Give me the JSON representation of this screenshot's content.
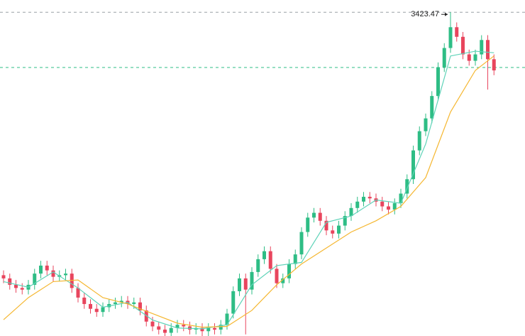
{
  "chart_data": {
    "type": "candlestick",
    "ylim": [
      1400,
      3500
    ],
    "up_color": "#2ebd85",
    "down_color": "#e8455d",
    "max_label": 3423.47,
    "max_line_color": "#9aa0a6",
    "price_line": 3078,
    "price_line_color": "#2ebd85",
    "open": [
      1780,
      1760,
      1720,
      1700,
      1690,
      1720,
      1790,
      1840,
      1810,
      1770,
      1780,
      1790,
      1700,
      1640,
      1600,
      1570,
      1550,
      1580,
      1600,
      1610,
      1620,
      1600,
      1610,
      1560,
      1490,
      1460,
      1440,
      1420,
      1450,
      1470,
      1460,
      1440,
      1450,
      1430,
      1450,
      1440,
      1470,
      1540,
      1680,
      1760,
      1690,
      1800,
      1880,
      1930,
      1820,
      1730,
      1760,
      1850,
      1910,
      2050,
      2140,
      2170,
      2120,
      2060,
      2040,
      2090,
      2150,
      2200,
      2240,
      2270,
      2260,
      2240,
      2210,
      2190,
      2230,
      2290,
      2380,
      2560,
      2680,
      2760,
      2900,
      3080,
      3200,
      3330,
      3270,
      3160,
      3120,
      3160,
      3250,
      3130
    ],
    "high": [
      1810,
      1790,
      1750,
      1730,
      1750,
      1820,
      1870,
      1870,
      1840,
      1810,
      1820,
      1820,
      1730,
      1670,
      1630,
      1600,
      1610,
      1630,
      1640,
      1650,
      1650,
      1640,
      1640,
      1590,
      1520,
      1490,
      1470,
      1480,
      1500,
      1500,
      1490,
      1480,
      1480,
      1480,
      1480,
      1500,
      1570,
      1710,
      1790,
      1790,
      1830,
      1910,
      1960,
      1960,
      1850,
      1790,
      1880,
      1940,
      2080,
      2170,
      2200,
      2200,
      2150,
      2090,
      2120,
      2180,
      2230,
      2270,
      2300,
      2300,
      2290,
      2270,
      2240,
      2260,
      2320,
      2410,
      2590,
      2710,
      2790,
      2930,
      3110,
      3230,
      3423.47,
      3360,
      3300,
      3190,
      3190,
      3280,
      3280,
      3160
    ],
    "low": [
      1730,
      1690,
      1670,
      1660,
      1660,
      1690,
      1760,
      1780,
      1740,
      1740,
      1750,
      1670,
      1610,
      1570,
      1540,
      1520,
      1520,
      1550,
      1570,
      1580,
      1570,
      1570,
      1530,
      1460,
      1430,
      1410,
      1390,
      1390,
      1420,
      1430,
      1410,
      1410,
      1400,
      1400,
      1410,
      1410,
      1440,
      1510,
      1650,
      1410,
      1660,
      1770,
      1850,
      1790,
      1700,
      1700,
      1730,
      1820,
      1880,
      2020,
      2110,
      2090,
      2030,
      2010,
      2010,
      2060,
      2120,
      2170,
      2210,
      2230,
      2210,
      2180,
      2160,
      2160,
      2200,
      2260,
      2350,
      2530,
      2650,
      2730,
      2870,
      3050,
      3170,
      3240,
      3130,
      3090,
      3090,
      3130,
      2940,
      3030
    ],
    "close": [
      1760,
      1720,
      1700,
      1690,
      1720,
      1790,
      1840,
      1810,
      1770,
      1780,
      1790,
      1700,
      1640,
      1600,
      1570,
      1550,
      1580,
      1600,
      1610,
      1620,
      1600,
      1610,
      1560,
      1490,
      1460,
      1440,
      1420,
      1450,
      1470,
      1460,
      1440,
      1450,
      1430,
      1450,
      1440,
      1470,
      1540,
      1680,
      1760,
      1690,
      1800,
      1880,
      1930,
      1820,
      1730,
      1760,
      1850,
      1910,
      2050,
      2140,
      2170,
      2120,
      2060,
      2040,
      2090,
      2150,
      2200,
      2240,
      2270,
      2260,
      2240,
      2210,
      2190,
      2230,
      2290,
      2380,
      2560,
      2680,
      2760,
      2900,
      3080,
      3200,
      3330,
      3270,
      3160,
      3120,
      3160,
      3250,
      3130,
      3060
    ],
    "moving_averages": [
      {
        "color": "#5ed3b8",
        "x": [
          0,
          4,
          8,
          12,
          16,
          20,
          24,
          28,
          32,
          36,
          40,
          44,
          48,
          52,
          56,
          60,
          64,
          68,
          72,
          76,
          79
        ],
        "values": [
          1740,
          1705,
          1800,
          1700,
          1580,
          1610,
          1500,
          1450,
          1445,
          1470,
          1720,
          1840,
          1860,
          2110,
          2150,
          2250,
          2230,
          2600,
          3150,
          3180,
          3170
        ]
      },
      {
        "color": "#f5b731",
        "x": [
          0,
          4,
          8,
          12,
          16,
          20,
          24,
          28,
          32,
          36,
          40,
          44,
          48,
          52,
          56,
          60,
          64,
          68,
          72,
          76,
          79
        ],
        "values": [
          1502,
          1640,
          1740,
          1750,
          1640,
          1600,
          1540,
          1480,
          1455,
          1460,
          1560,
          1720,
          1850,
          1950,
          2050,
          2120,
          2210,
          2390,
          2800,
          3060,
          3150
        ]
      }
    ]
  }
}
